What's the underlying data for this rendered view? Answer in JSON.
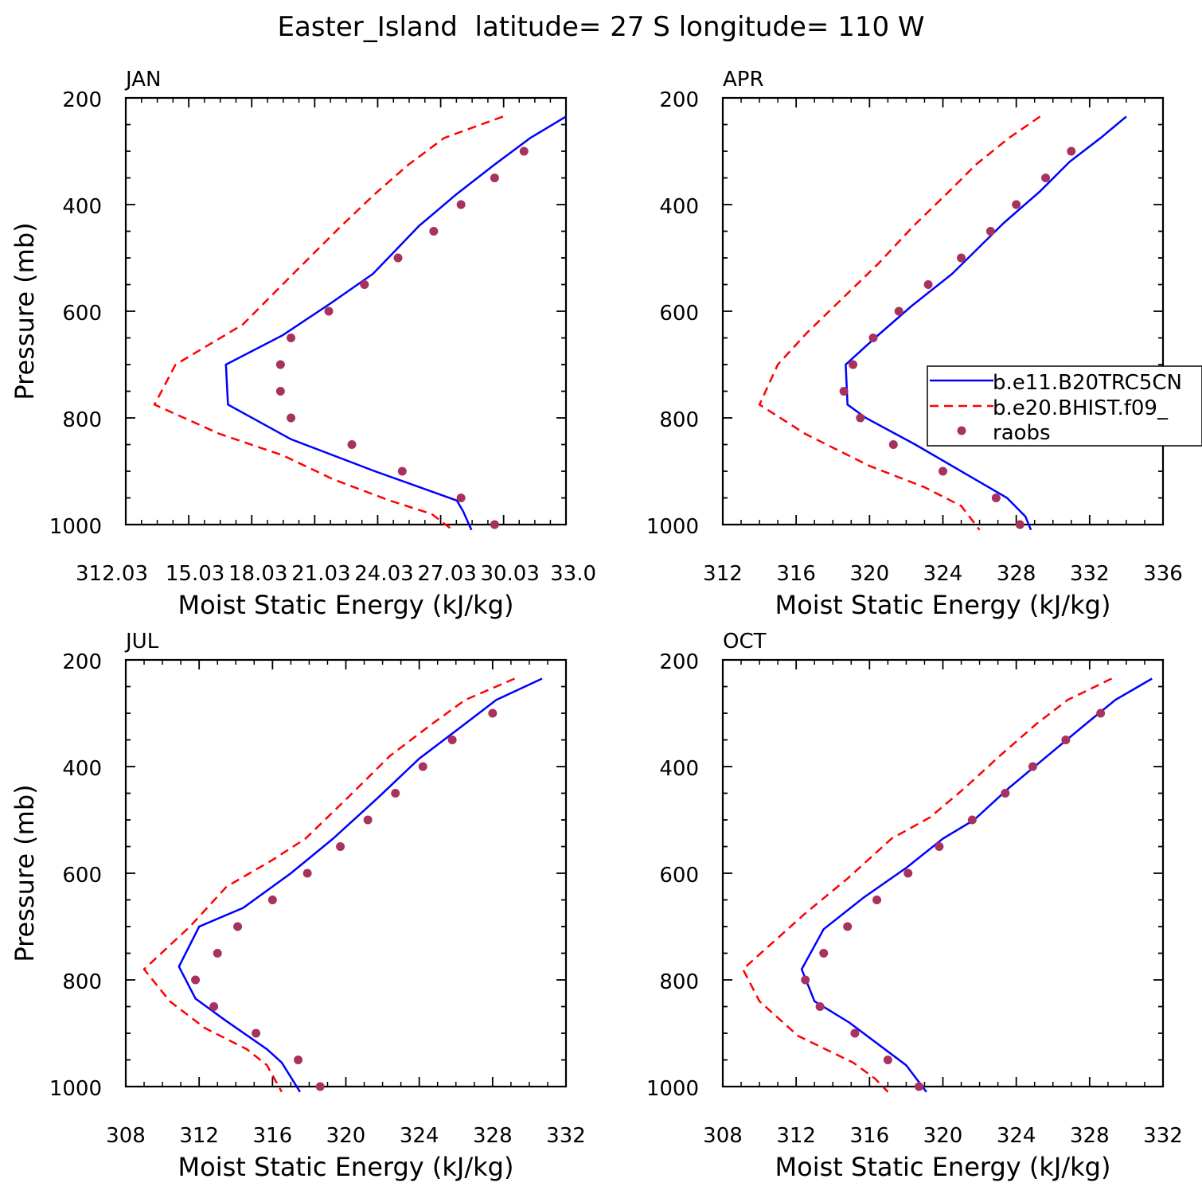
{
  "figure_title": "Easter_Island  latitude= 27 S longitude= 110 W",
  "legend": {
    "entries": [
      {
        "label": "b.e11.B20TRC5CN",
        "style": "solid",
        "color": "#0000ff"
      },
      {
        "label": "b.e20.BHIST.f09_",
        "style": "dashed",
        "color": "#ff0000"
      },
      {
        "label": "raobs",
        "style": "dot",
        "color": "#a8325e"
      }
    ]
  },
  "colors": {
    "model1": "#0000ff",
    "model2": "#ff0000",
    "raobs": "#a8325e"
  },
  "chart_data": [
    {
      "type": "line",
      "title": "JAN",
      "xlabel": "Moist Static Energy (kJ/kg)",
      "ylabel": "Pressure (mb)",
      "xlim": [
        312.03,
        333.0
      ],
      "ylim": [
        1000,
        200
      ],
      "xticks": [
        312.03,
        315.03,
        318.03,
        321.03,
        324.03,
        327.03,
        330.03,
        333.0
      ],
      "xtick_labels": [
        "312.03",
        "15.03",
        "18.03",
        "21.03",
        "24.03",
        "27.03",
        "30.03",
        "33.0"
      ],
      "yticks": [
        200,
        400,
        600,
        800,
        1000
      ],
      "ytick_labels": [
        "200",
        "400",
        "600",
        "800",
        "1000"
      ],
      "series": [
        {
          "name": "b.e11.B20TRC5CN",
          "style": "solid",
          "x": [
            333.0,
            331.3,
            329.6,
            327.8,
            326.0,
            323.8,
            321.8,
            319.5,
            316.8,
            316.9,
            319.9,
            323.9,
            327.8,
            328.1,
            328.5
          ],
          "y": [
            235,
            275,
            325,
            380,
            440,
            530,
            585,
            645,
            700,
            775,
            840,
            900,
            955,
            975,
            1010
          ]
        },
        {
          "name": "b.e20.BHIST.f09_",
          "style": "dashed",
          "x": [
            330.0,
            327.2,
            325.5,
            323.9,
            322.3,
            320.0,
            317.6,
            314.4,
            313.4,
            316.5,
            319.5,
            321.9,
            324.6,
            326.6,
            327.6
          ],
          "y": [
            235,
            275,
            325,
            380,
            440,
            530,
            625,
            700,
            775,
            830,
            870,
            915,
            955,
            980,
            1010
          ]
        }
      ],
      "points": {
        "name": "raobs",
        "x": [
          331.0,
          329.6,
          328.0,
          326.7,
          325.0,
          323.4,
          321.7,
          319.9,
          319.4,
          319.4,
          319.9,
          322.8,
          325.2,
          328.0,
          329.6
        ],
        "y": [
          300,
          350,
          400,
          450,
          500,
          550,
          600,
          650,
          700,
          750,
          800,
          850,
          900,
          950,
          1000
        ]
      }
    },
    {
      "type": "line",
      "title": "APR",
      "xlabel": "Moist Static Energy (kJ/kg)",
      "ylabel": "",
      "xlim": [
        312,
        336
      ],
      "ylim": [
        1000,
        200
      ],
      "xticks": [
        312,
        316,
        320,
        324,
        328,
        332,
        336
      ],
      "xtick_labels": [
        "312",
        "316",
        "320",
        "324",
        "328",
        "332",
        "336"
      ],
      "yticks": [
        200,
        400,
        600,
        800,
        1000
      ],
      "ytick_labels": [
        "200",
        "400",
        "600",
        "800",
        "1000"
      ],
      "series": [
        {
          "name": "b.e11.B20TRC5CN",
          "style": "solid",
          "x": [
            334.0,
            332.6,
            330.9,
            329.3,
            327.3,
            324.5,
            322.3,
            320.3,
            318.7,
            318.8,
            319.8,
            322.5,
            326.0,
            327.5,
            328.5,
            328.8
          ],
          "y": [
            235,
            275,
            320,
            375,
            435,
            530,
            590,
            650,
            700,
            775,
            800,
            850,
            920,
            950,
            985,
            1010
          ]
        },
        {
          "name": "b.e20.BHIST.f09_",
          "style": "dashed",
          "x": [
            329.3,
            327.6,
            325.8,
            324.2,
            322.4,
            320.5,
            318.7,
            316.6,
            315.0,
            314.0,
            316.5,
            320.0,
            323.0,
            325.0,
            326.0
          ],
          "y": [
            235,
            275,
            325,
            380,
            440,
            510,
            570,
            640,
            700,
            775,
            830,
            890,
            930,
            965,
            1010
          ]
        }
      ],
      "points": {
        "name": "raobs",
        "x": [
          331.0,
          329.6,
          328.0,
          326.6,
          325.0,
          323.2,
          321.6,
          320.2,
          319.1,
          318.6,
          319.5,
          321.3,
          324.0,
          326.9,
          328.2
        ],
        "y": [
          300,
          350,
          400,
          450,
          500,
          550,
          600,
          650,
          700,
          750,
          800,
          850,
          900,
          950,
          1000
        ]
      }
    },
    {
      "type": "line",
      "title": "JUL",
      "xlabel": "Moist Static Energy (kJ/kg)",
      "ylabel": "Pressure (mb)",
      "xlim": [
        308,
        332
      ],
      "ylim": [
        1000,
        200
      ],
      "xticks": [
        308,
        312,
        316,
        320,
        324,
        328,
        332
      ],
      "xtick_labels": [
        "308",
        "312",
        "316",
        "320",
        "324",
        "328",
        "332"
      ],
      "yticks": [
        200,
        400,
        600,
        800,
        1000
      ],
      "ytick_labels": [
        "200",
        "400",
        "600",
        "800",
        "1000"
      ],
      "series": [
        {
          "name": "b.e11.B20TRC5CN",
          "style": "solid",
          "x": [
            330.7,
            328.2,
            326.3,
            324.0,
            321.7,
            319.3,
            317.0,
            314.4,
            312.0,
            310.9,
            311.8,
            313.4,
            315.7,
            316.5,
            317.5
          ],
          "y": [
            235,
            275,
            325,
            385,
            460,
            535,
            600,
            665,
            700,
            775,
            835,
            875,
            930,
            955,
            1010
          ]
        },
        {
          "name": "b.e20.BHIST.f09_",
          "style": "dashed",
          "x": [
            329.2,
            326.5,
            324.7,
            322.4,
            320.2,
            317.8,
            316.0,
            313.5,
            311.5,
            309.0,
            310.4,
            312.3,
            314.6,
            315.7,
            316.5
          ],
          "y": [
            235,
            275,
            320,
            380,
            455,
            535,
            575,
            625,
            700,
            780,
            840,
            890,
            930,
            960,
            1010
          ]
        }
      ],
      "points": {
        "name": "raobs",
        "x": [
          328.0,
          325.8,
          324.2,
          322.7,
          321.2,
          319.7,
          317.9,
          316.0,
          314.1,
          313.0,
          311.8,
          312.8,
          315.1,
          317.4,
          318.6
        ],
        "y": [
          300,
          350,
          400,
          450,
          500,
          550,
          600,
          650,
          700,
          750,
          800,
          850,
          900,
          950,
          1000
        ]
      }
    },
    {
      "type": "line",
      "title": "OCT",
      "xlabel": "Moist Static Energy (kJ/kg)",
      "ylabel": "",
      "xlim": [
        308,
        332
      ],
      "ylim": [
        1000,
        200
      ],
      "xticks": [
        308,
        312,
        316,
        320,
        324,
        328,
        332
      ],
      "xtick_labels": [
        "308",
        "312",
        "316",
        "320",
        "324",
        "328",
        "332"
      ],
      "yticks": [
        200,
        400,
        600,
        800,
        1000
      ],
      "ytick_labels": [
        "200",
        "400",
        "600",
        "800",
        "1000"
      ],
      "series": [
        {
          "name": "b.e11.B20TRC5CN",
          "style": "solid",
          "x": [
            331.4,
            329.4,
            327.8,
            325.7,
            323.6,
            321.7,
            320.0,
            318.0,
            315.7,
            313.5,
            312.3,
            313.0,
            314.9,
            318.0,
            319.1
          ],
          "y": [
            235,
            275,
            320,
            380,
            440,
            500,
            535,
            590,
            645,
            705,
            780,
            840,
            880,
            960,
            1010
          ]
        },
        {
          "name": "b.e20.BHIST.f09_",
          "style": "dashed",
          "x": [
            329.2,
            326.8,
            325.1,
            323.1,
            321.2,
            319.3,
            317.2,
            314.8,
            312.5,
            309.1,
            310.0,
            312.1,
            315.1,
            316.3,
            317.0
          ],
          "y": [
            235,
            275,
            320,
            380,
            440,
            495,
            535,
            610,
            675,
            780,
            840,
            905,
            955,
            985,
            1010
          ]
        }
      ],
      "points": {
        "name": "raobs",
        "x": [
          328.6,
          326.7,
          324.9,
          323.4,
          321.6,
          319.8,
          318.1,
          316.4,
          314.8,
          313.5,
          312.5,
          313.3,
          315.2,
          317.0,
          318.7
        ],
        "y": [
          300,
          350,
          400,
          450,
          500,
          550,
          600,
          650,
          700,
          750,
          800,
          850,
          900,
          950,
          1000
        ]
      }
    }
  ]
}
